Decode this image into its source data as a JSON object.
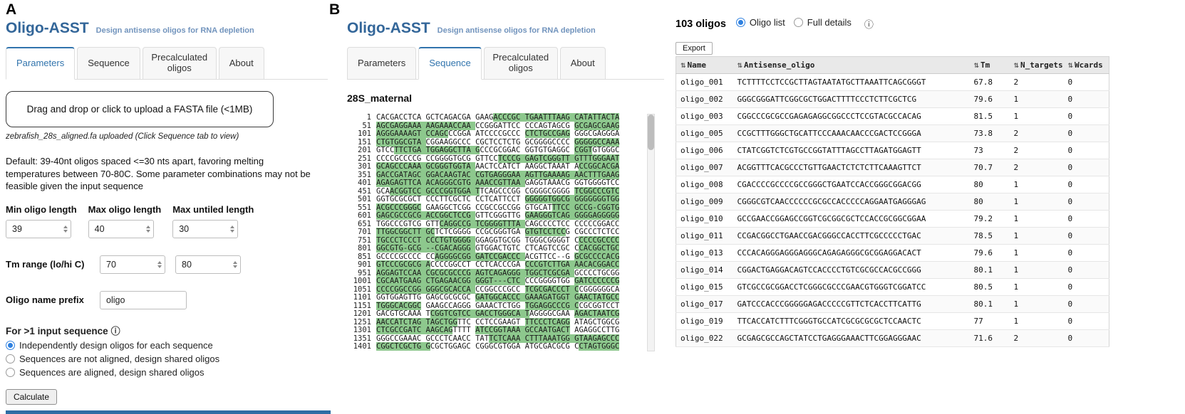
{
  "app": {
    "title": "Oligo-ASST",
    "subtitle": "Design antisense oligos for RNA depletion"
  },
  "icons": {
    "info": "ⓘ",
    "sort": "⇅"
  },
  "colors": {
    "accent_blue": "#336699",
    "active_tab_blue": "#3174ad",
    "highlight_green": "#8dc88d",
    "radio_blue": "#2f81e0",
    "bottom_bar_blue": "#2e6da4"
  },
  "panel_a": {
    "label": "A",
    "tabs": [
      "Parameters",
      "Sequence",
      "Precalculated oligos",
      "About"
    ],
    "active_tab": "Parameters",
    "upload_text": "Drag and drop or click to upload a FASTA file (<1MB)",
    "upload_status": "zebrafish_28s_aligned.fa uploaded (Click Sequence tab to view)",
    "description": "Default: 39-40nt oligos spaced <=30 nts apart, favoring melting temperatures between 70-80C. Some parameter combinations may not be feasible given the input sequence",
    "length_fields": [
      {
        "label": "Min oligo length",
        "value": "39"
      },
      {
        "label": "Max oligo length",
        "value": "40"
      },
      {
        "label": "Max untiled length",
        "value": "30"
      }
    ],
    "tm": {
      "label": "Tm range (lo/hi C)",
      "lo": "70",
      "hi": "80"
    },
    "prefix": {
      "label": "Oligo name prefix",
      "value": "oligo"
    },
    "multi": {
      "label": "For >1 input sequence",
      "options": [
        {
          "label": "Independently design oligos for each sequence",
          "selected": true
        },
        {
          "label": "Sequences are not aligned, design shared oligos",
          "selected": false
        },
        {
          "label": "Sequences are aligned, design shared oligos",
          "selected": false
        }
      ]
    },
    "calculate": "Calculate"
  },
  "panel_b": {
    "label": "B",
    "tabs": [
      "Parameters",
      "Sequence",
      "Precalculated oligos",
      "About"
    ],
    "active_tab": "Sequence",
    "sequence_title": "28S_maternal",
    "sequence_lines": [
      {
        "num": "1",
        "segments": [
          {
            "t": "CACGACCTCA GCTCAGACGA GAAG",
            "h": 0
          },
          {
            "t": "ACCCGC TGAATTTAAG CATATTACTA",
            "h": 1
          }
        ]
      },
      {
        "num": "51",
        "segments": [
          {
            "t": "AGCGAGGAAA AAGAAACCAA ",
            "h": 1
          },
          {
            "t": "CCGGGATTCC CCCAGTAGCG ",
            "h": 0
          },
          {
            "t": "GCGAGCGAAG",
            "h": 1
          }
        ]
      },
      {
        "num": "101",
        "segments": [
          {
            "t": "AGGGAAAAGT CCAGC",
            "h": 1
          },
          {
            "t": "CCGGA ATCCCCGCCC ",
            "h": 0
          },
          {
            "t": "CTCTGCCGAG",
            "h": 1
          },
          {
            "t": " GGGCGAGGGA",
            "h": 0
          }
        ]
      },
      {
        "num": "151",
        "segments": [
          {
            "t": "CTGTGGCGTA ",
            "h": 1
          },
          {
            "t": "CGGAAGGCCC CGCTCCTCTG GCGGGGCCCC ",
            "h": 0
          },
          {
            "t": "GGGGGCCAAA",
            "h": 1
          }
        ]
      },
      {
        "num": "201",
        "segments": [
          {
            "t": "GTCC",
            "h": 0
          },
          {
            "t": "TTCTGA TGGAGGCTTA G",
            "h": 1
          },
          {
            "t": "CCCGCGGAC GGTGTGAGGC ",
            "h": 0
          },
          {
            "t": "CGGT",
            "h": 1
          },
          {
            "t": "GTGGGC",
            "h": 0
          }
        ]
      },
      {
        "num": "251",
        "segments": [
          {
            "t": "CCCCGCCCCG CCGGGGTGCG GTTCC",
            "h": 0
          },
          {
            "t": "TCCCG GAGTCGGGTT GTTTGGGAAT",
            "h": 1
          }
        ]
      },
      {
        "num": "301",
        "segments": [
          {
            "t": "GCAGCCCAAA GCGGGTGGTA ",
            "h": 1
          },
          {
            "t": "AACTCCATCT AAGGCTAAAT A",
            "h": 0
          },
          {
            "t": "CCGGCACGA",
            "h": 1
          }
        ]
      },
      {
        "num": "351",
        "segments": [
          {
            "t": "GACCGATAGC GGACAAGTAC CGTGAGGGAA AGTTGAAAAG AACTTTGAAG",
            "h": 1
          }
        ]
      },
      {
        "num": "401",
        "segments": [
          {
            "t": "AGAGAGTTCA ACAGGGCGTG AAACCGTTAA ",
            "h": 1
          },
          {
            "t": "GAGGTAAACG GGTGGGGTCC",
            "h": 0
          }
        ]
      },
      {
        "num": "451",
        "segments": [
          {
            "t": "GCA",
            "h": 0
          },
          {
            "t": "ACGGTCC GCCCGGTGGA T",
            "h": 1
          },
          {
            "t": "TCAGCCCGG CGGGGCGGGG ",
            "h": 0
          },
          {
            "t": "TCGGCCCGTC",
            "h": 1
          }
        ]
      },
      {
        "num": "501",
        "segments": [
          {
            "t": "GGTGCGCGCT CCCTTCGCTC CCTCATTCCT ",
            "h": 0
          },
          {
            "t": "GGGGGTGGCG GGGGGGGTGG",
            "h": 1
          }
        ]
      },
      {
        "num": "551",
        "segments": [
          {
            "t": "ACGCCCGGGC",
            "h": 1
          },
          {
            "t": " GAAGGCTCGG CCGCCGCCGG GTGCAT",
            "h": 0
          },
          {
            "t": "TTCC GCCG-CGGTG",
            "h": 1
          }
        ]
      },
      {
        "num": "601",
        "segments": [
          {
            "t": "GAGCGCCGCG ACCGGCTCCG ",
            "h": 1
          },
          {
            "t": "GTTCGGGTTG ",
            "h": 0
          },
          {
            "t": "GAAGGGTCAG GGGGAGGGGG",
            "h": 1
          }
        ]
      },
      {
        "num": "651",
        "segments": [
          {
            "t": "TGGCCCGTCG GTT",
            "h": 0
          },
          {
            "t": "CAGGCCG TCGGGGTTTA ",
            "h": 1
          },
          {
            "t": "CAGCCCCTCC CCCCCGGACC",
            "h": 0
          }
        ]
      },
      {
        "num": "701",
        "segments": [
          {
            "t": "TTGGCGGCTT GC",
            "h": 1
          },
          {
            "t": "TCTCGGGG CCGCGGGTGA ",
            "h": 0
          },
          {
            "t": "GTGTCCTCC",
            "h": 1
          },
          {
            "t": "G CGCCCTCTCC",
            "h": 0
          }
        ]
      },
      {
        "num": "751",
        "segments": [
          {
            "t": "TGCCCTCCCT CCCTGTGGGG ",
            "h": 1
          },
          {
            "t": "GGAGGTGCGG TGGGCGGGGT C",
            "h": 0
          },
          {
            "t": "CCCCGCCCC",
            "h": 1
          }
        ]
      },
      {
        "num": "801",
        "segments": [
          {
            "t": "GGCGTG-GCG --CGACAGGG ",
            "h": 1
          },
          {
            "t": "GTGGACTGTC CTCAGTCCGC C",
            "h": 0
          },
          {
            "t": "CACGGCTGC",
            "h": 1
          }
        ]
      },
      {
        "num": "851",
        "segments": [
          {
            "t": "GCCCCGCCCC CC",
            "h": 0
          },
          {
            "t": "AGGGGCGG GATCCGACCC ",
            "h": 1
          },
          {
            "t": "ACGTTCC--G ",
            "h": 0
          },
          {
            "t": "GCGCCCCACG",
            "h": 1
          }
        ]
      },
      {
        "num": "901",
        "segments": [
          {
            "t": "GTCCCGCGCG A",
            "h": 1
          },
          {
            "t": "CCCCGGCCT CCTCACCCGA ",
            "h": 0
          },
          {
            "t": "CCCGTCTTGA AACACGGACC",
            "h": 1
          }
        ]
      },
      {
        "num": "951",
        "segments": [
          {
            "t": "AGGAGTCCAA CGCGCGCCCG AGTCAGAGGG TGGCTCGCGA ",
            "h": 1
          },
          {
            "t": "GCCCCTGCGG",
            "h": 0
          }
        ]
      },
      {
        "num": "1001",
        "segments": [
          {
            "t": "CGCAATGAAG CTGAGAACGG GGGT---CTC ",
            "h": 1
          },
          {
            "t": "CCCGGGGTGG ",
            "h": 0
          },
          {
            "t": "GATCCCCCCG",
            "h": 1
          }
        ]
      },
      {
        "num": "1051",
        "segments": [
          {
            "t": "CCCCGGCCGG GGGCGCACCA ",
            "h": 1
          },
          {
            "t": "CCGGCCCGCC ",
            "h": 0
          },
          {
            "t": "TCGCGACCCT C",
            "h": 1
          },
          {
            "t": "CGGGGGGCA",
            "h": 0
          }
        ]
      },
      {
        "num": "1101",
        "segments": [
          {
            "t": "GGTGGAGTTG GAGCGCGCGC ",
            "h": 0
          },
          {
            "t": "GATGGCACCC GAAAGATGGT GAACTATGCC",
            "h": 1
          }
        ]
      },
      {
        "num": "1151",
        "segments": [
          {
            "t": "TGGGCACGGC",
            "h": 1
          },
          {
            "t": " GAAGCCAGGG GAAACTCTGG ",
            "h": 0
          },
          {
            "t": "TGGAGGCCCG C",
            "h": 1
          },
          {
            "t": "CGCGGTCCT",
            "h": 0
          }
        ]
      },
      {
        "num": "1201",
        "segments": [
          {
            "t": "GACGTGCAAA T",
            "h": 0
          },
          {
            "t": "CGGTCGTCC GACCTGGGCA T",
            "h": 1
          },
          {
            "t": "AGGGGCGAA ",
            "h": 0
          },
          {
            "t": "AGACTAATCG",
            "h": 1
          }
        ]
      },
      {
        "num": "1251",
        "segments": [
          {
            "t": "AACCATCTAG TAGCTGG",
            "h": 1
          },
          {
            "t": "TTC CCTCCGAAGT ",
            "h": 0
          },
          {
            "t": "TTCCCTCAGG",
            "h": 1
          },
          {
            "t": " ATAGCTGGCG",
            "h": 0
          }
        ]
      },
      {
        "num": "1301",
        "segments": [
          {
            "t": "CTCGCCGATC AAGCAG",
            "h": 1
          },
          {
            "t": "TTTT ",
            "h": 0
          },
          {
            "t": "ATCCGGTAAA GCCAATGACT",
            "h": 1
          },
          {
            "t": " AGAGGCCTTG",
            "h": 0
          }
        ]
      },
      {
        "num": "1351",
        "segments": [
          {
            "t": "GGGCCGAAAC GCCCTCAACC TAT",
            "h": 0
          },
          {
            "t": "TCTCAAA CTTTAAATGG GTAAGAGCCC",
            "h": 1
          }
        ]
      },
      {
        "num": "1401",
        "segments": [
          {
            "t": "CGGCTCGCTG G",
            "h": 1
          },
          {
            "t": "CGCTGGAGC CGGGCGTGGA ATGCGACGCG C",
            "h": 0
          },
          {
            "t": "CTAGTGGGC",
            "h": 1
          }
        ]
      }
    ]
  },
  "results": {
    "count": "103 oligos",
    "views": [
      {
        "label": "Oligo list",
        "selected": true
      },
      {
        "label": "Full details",
        "selected": false
      }
    ],
    "export": "Export",
    "table": {
      "columns": [
        {
          "label": "Name",
          "sortable": true
        },
        {
          "label": "Antisense_oligo",
          "sortable": true
        },
        {
          "label": "Tm",
          "sortable": true
        },
        {
          "label": "N_targets",
          "sortable": true
        },
        {
          "label": "Wcards",
          "sortable": true
        }
      ],
      "rows": [
        {
          "name": "oligo_001",
          "oligo": "TCTTTTCCTCCGCTTAGTAATATGCTTAAATTCAGCGGGT",
          "tm": "67.8",
          "n_targets": "2",
          "wcards": "0"
        },
        {
          "name": "oligo_002",
          "oligo": "GGGCGGGATTCGGCGCTGGACTTTTCCCTCTTCGCTCG",
          "tm": "79.6",
          "n_targets": "1",
          "wcards": "0"
        },
        {
          "name": "oligo_003",
          "oligo": "CGGCCCGCGCCGAGAGAGGCGGCCCTCCGTACGCCACAG",
          "tm": "81.5",
          "n_targets": "1",
          "wcards": "0"
        },
        {
          "name": "oligo_005",
          "oligo": "CCGCTTTGGGCTGCATTCCCAAACAACCCGACTCCGGGA",
          "tm": "73.8",
          "n_targets": "2",
          "wcards": "0"
        },
        {
          "name": "oligo_006",
          "oligo": "CTATCGGTCTCGTGCCGGTATTTAGCCTTAGATGGAGTT",
          "tm": "73",
          "n_targets": "2",
          "wcards": "0"
        },
        {
          "name": "oligo_007",
          "oligo": "ACGGTTTCACGCCCTGTTGAACTCTCTCTTCAAAGTTCT",
          "tm": "70.7",
          "n_targets": "2",
          "wcards": "0"
        },
        {
          "name": "oligo_008",
          "oligo": "CGACCCCGCCCCGCCGGGCTGAATCCACCGGGCGGACGG",
          "tm": "80",
          "n_targets": "1",
          "wcards": "0"
        },
        {
          "name": "oligo_009",
          "oligo": "CGGGCGTCAACCCCCCGCGCCACCCCCAGGAATGAGGGAG",
          "tm": "80",
          "n_targets": "1",
          "wcards": "0"
        },
        {
          "name": "oligo_010",
          "oligo": "GCCGAACCGGAGCCGGTCGCGGCGCTCCACCGCGGCGGAA",
          "tm": "79.2",
          "n_targets": "1",
          "wcards": "0"
        },
        {
          "name": "oligo_011",
          "oligo": "CCGACGGCCTGAACCGACGGGCCACCTTCGCCCCCTGAC",
          "tm": "78.5",
          "n_targets": "1",
          "wcards": "0"
        },
        {
          "name": "oligo_013",
          "oligo": "CCCACAGGGAGGGAGGGCAGAGAGGGCGCGGAGGACACT",
          "tm": "79.6",
          "n_targets": "1",
          "wcards": "0"
        },
        {
          "name": "oligo_014",
          "oligo": "CGGACTGAGGACAGTCCACCCCTGTCGCGCCACGCCGGG",
          "tm": "80.1",
          "n_targets": "1",
          "wcards": "0"
        },
        {
          "name": "oligo_015",
          "oligo": "GTCGCCGCGGACCTCGGGCGCCCGAACGTGGGTCGGATCC",
          "tm": "80.5",
          "n_targets": "1",
          "wcards": "0"
        },
        {
          "name": "oligo_017",
          "oligo": "GATCCCACCCGGGGGAGACCCCCGTTCTCACCTTCATTG",
          "tm": "80.1",
          "n_targets": "1",
          "wcards": "0"
        },
        {
          "name": "oligo_019",
          "oligo": "TTCACCATCTTTCGGGTGCCATCGCGCGCGCTCCAACTC",
          "tm": "77",
          "n_targets": "1",
          "wcards": "0"
        },
        {
          "name": "oligo_022",
          "oligo": "GCGAGCGCCAGCTATCCTGAGGGAAACTTCGGAGGGAAC",
          "tm": "71.6",
          "n_targets": "2",
          "wcards": "0"
        }
      ]
    }
  }
}
